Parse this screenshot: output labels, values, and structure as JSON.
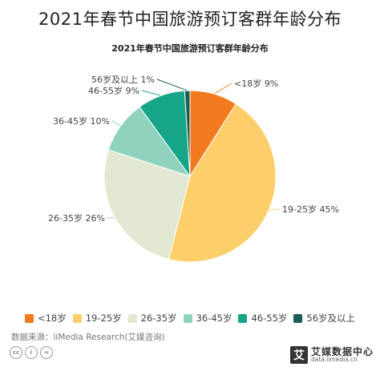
{
  "header": {
    "main_title": "2021年春节中国旅游预订客群年龄分布"
  },
  "chart_data": {
    "type": "pie",
    "title": "2021年春节中国旅游预订客群年龄分布",
    "slices": [
      {
        "label": "<18岁",
        "value": 9,
        "color": "#F47A1F"
      },
      {
        "label": "19-25岁",
        "value": 45,
        "color": "#FDCF6A"
      },
      {
        "label": "26-35岁",
        "value": 26,
        "color": "#E2E8D2"
      },
      {
        "label": "36-45岁",
        "value": 10,
        "color": "#8FD3BE"
      },
      {
        "label": "46-55岁",
        "value": 9,
        "color": "#17A58A"
      },
      {
        "label": "56岁及以上",
        "value": 1,
        "color": "#1B5E55"
      }
    ]
  },
  "source": "数据来源：iiMedia Research(艾媒咨询)",
  "brand": {
    "name": "艾媒数据中心",
    "url": "data.iimedia.cn",
    "logo_char": "艾"
  },
  "icons": [
    "cc-icon",
    "by-icon",
    "nd-icon"
  ]
}
